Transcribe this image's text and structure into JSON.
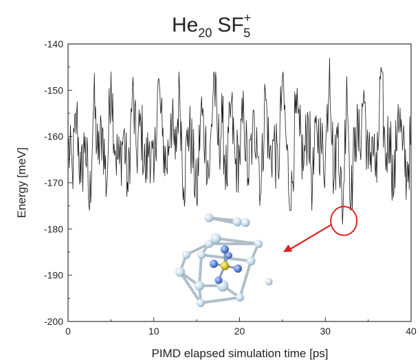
{
  "chart_data": {
    "type": "line",
    "title": {
      "main": "He",
      "main_sub": "20",
      "ion": "SF",
      "ion_sub": "5",
      "ion_sup": "+"
    },
    "xlabel": "PIMD elapsed simulation time [ps]",
    "ylabel": "Energy [meV]",
    "xlim": [
      0,
      40
    ],
    "ylim": [
      -200,
      -140
    ],
    "x_ticks": [
      0,
      10,
      20,
      30,
      40
    ],
    "y_ticks": [
      -200,
      -190,
      -180,
      -170,
      -160,
      -150,
      -140
    ],
    "grid": false,
    "series": [
      {
        "color": "#1a1a1a",
        "x": [
          0,
          0.5,
          1.0,
          1.5,
          2.0,
          2.5,
          3.0,
          3.5,
          4.0,
          4.5,
          5.0,
          5.5,
          6.0,
          6.5,
          7.0,
          7.5,
          8.0,
          8.5,
          9.0,
          9.5,
          10.0,
          10.5,
          11.0,
          11.5,
          12.0,
          12.5,
          13.0,
          13.5,
          14.0,
          14.5,
          15.0,
          15.5,
          16.0,
          16.5,
          17.0,
          17.5,
          18.0,
          18.5,
          19.0,
          19.5,
          20.0,
          20.5,
          21.0,
          21.5,
          22.0,
          22.5,
          23.0,
          23.5,
          24.0,
          24.5,
          25.0,
          25.5,
          26.0,
          26.5,
          27.0,
          27.5,
          28.0,
          28.5,
          29.0,
          29.5,
          30.0,
          30.5,
          31.0,
          31.5,
          32.0,
          32.5,
          33.0,
          33.5,
          34.0,
          34.5,
          35.0,
          35.5,
          36.0,
          36.5,
          37.0,
          37.5,
          38.0,
          38.5,
          39.0,
          39.5,
          40.0
        ],
        "y": [
          -162,
          -168,
          -155,
          -170,
          -160,
          -176,
          -152,
          -165,
          -158,
          -171,
          -146,
          -163,
          -166,
          -159,
          -172,
          -150,
          -164,
          -157,
          -168,
          -161,
          -170,
          -148,
          -160,
          -167,
          -155,
          -165,
          -149,
          -171,
          -158,
          -163,
          -174,
          -154,
          -161,
          -168,
          -146,
          -162,
          -157,
          -170,
          -153,
          -166,
          -164,
          -155,
          -169,
          -160,
          -158,
          -172,
          -150,
          -165,
          -161,
          -168,
          -147,
          -163,
          -176,
          -155,
          -160,
          -166,
          -156,
          -171,
          -158,
          -162,
          -165,
          -143,
          -170,
          -157,
          -179,
          -147,
          -175,
          -158,
          -162,
          -150,
          -167,
          -160,
          -170,
          -145,
          -165,
          -158,
          -172,
          -153,
          -163,
          -168,
          -161
        ]
      }
    ],
    "annotations": {
      "circle_target": {
        "x": 32,
        "y": -179
      },
      "arrow_color": "#e02020",
      "inset": "SF5+ molecule surrounded by helium atoms"
    }
  },
  "colors": {
    "sulfur": "#d6c02a",
    "fluorine": "#5b85d6",
    "helium": "#bcd4e4",
    "bond": "#b8c4cc"
  }
}
